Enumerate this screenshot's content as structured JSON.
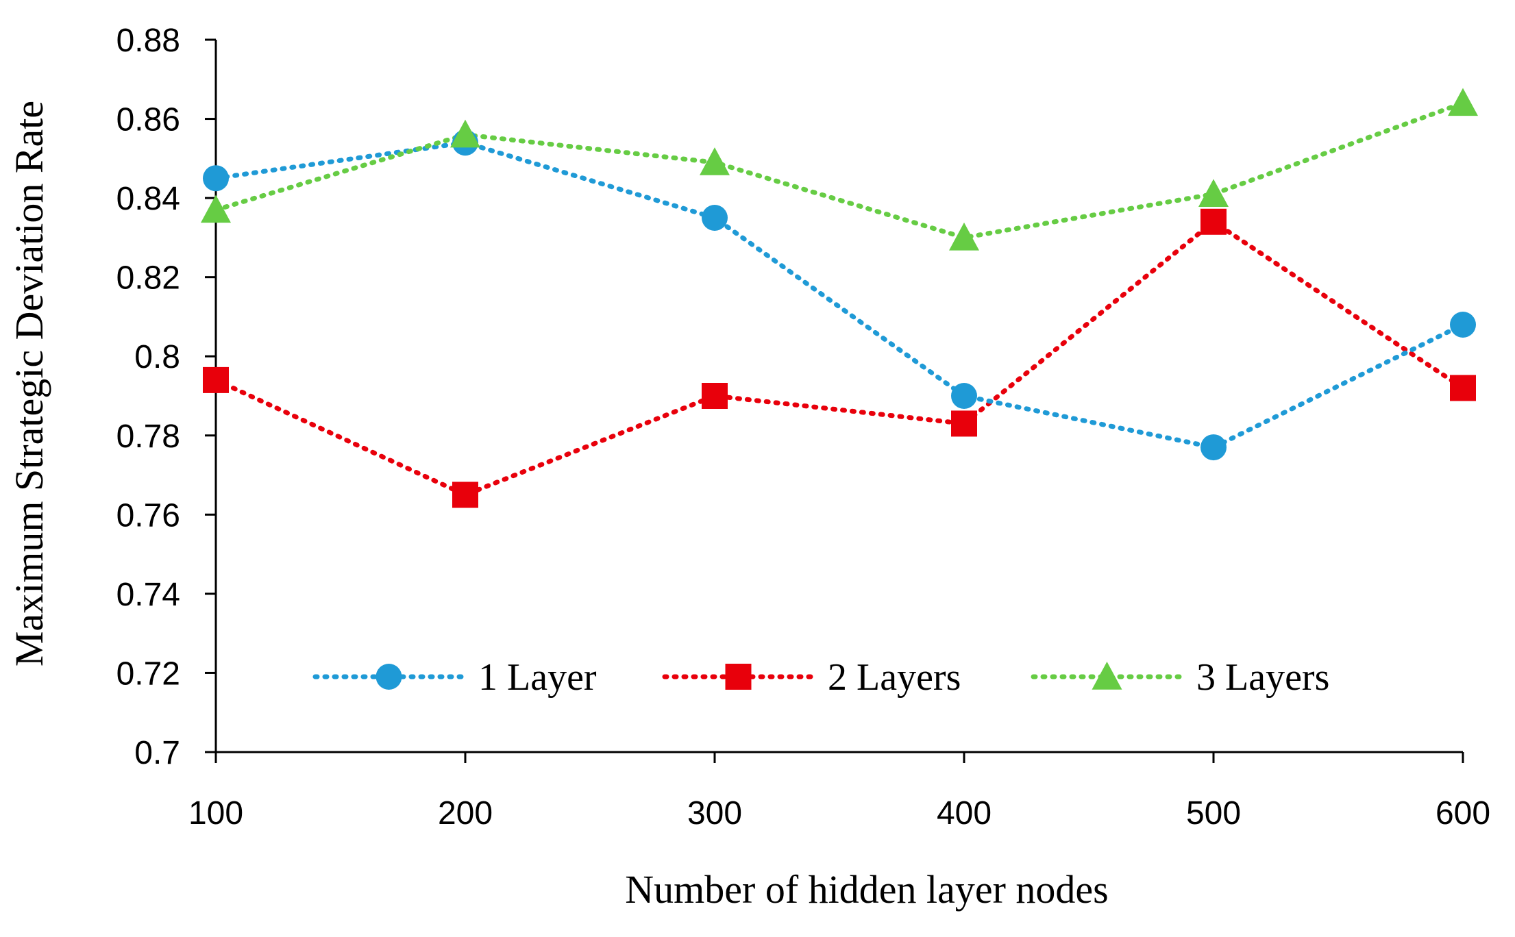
{
  "chart_data": {
    "type": "line",
    "title": "",
    "xlabel": "Number of hidden layer nodes",
    "ylabel": "Maximum Strategic Deviation Rate",
    "x": [
      100,
      200,
      300,
      400,
      500,
      600
    ],
    "ylim": [
      0.7,
      0.88
    ],
    "yticks": [
      "0.7",
      "0.72",
      "0.74",
      "0.76",
      "0.78",
      "0.8",
      "0.82",
      "0.84",
      "0.86",
      "0.88"
    ],
    "xticks": [
      "100",
      "200",
      "300",
      "400",
      "500",
      "600"
    ],
    "grid": false,
    "legend_position": "bottom-inside",
    "series": [
      {
        "name": "1 Layer",
        "values": [
          0.845,
          0.854,
          0.835,
          0.79,
          0.777,
          0.808
        ],
        "color": "#1f9ad6",
        "marker": "circle"
      },
      {
        "name": "2 Layers",
        "values": [
          0.794,
          0.765,
          0.79,
          0.783,
          0.834,
          0.792
        ],
        "color": "#e8000b",
        "marker": "square"
      },
      {
        "name": "3 Layers",
        "values": [
          0.837,
          0.856,
          0.849,
          0.83,
          0.841,
          0.864
        ],
        "color": "#66cc44",
        "marker": "triangle"
      }
    ]
  }
}
